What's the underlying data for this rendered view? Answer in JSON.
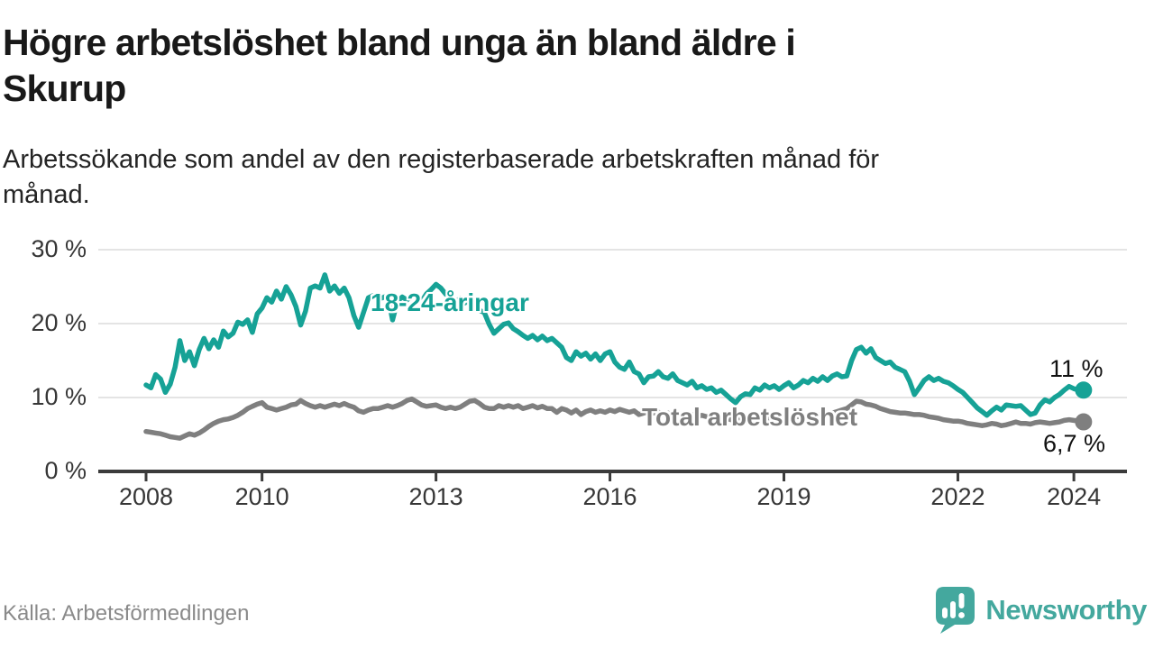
{
  "header": {
    "title_lines": [
      "Högre arbetslöshet bland unga än bland äldre i",
      "Skurup"
    ],
    "subtitle_lines": [
      "Arbetssökande som andel av den registerbaserade arbetskraften månad för",
      "månad."
    ]
  },
  "footer": {
    "source": "Källa: Arbetsförmedlingen",
    "brand_name": "Newsworthy",
    "brand_icon": "newsworthy-speech-bubble-bar-chart-icon"
  },
  "colors": {
    "young_line": "#16a296",
    "total_line": "#7f7f7f",
    "end_dot_young": "#16a296",
    "end_dot_total": "#7f7f7f",
    "gridline": "#dcdcdc",
    "axis": "#3b3b3b",
    "title_text": "#191919",
    "tick_text": "#363636",
    "source_text": "#8a8a8a",
    "brand_teal": "#44a89e"
  },
  "chart_data": {
    "type": "line",
    "frequency": "monthly",
    "x_start": "2008-01",
    "x_end": "2024-03",
    "grid": "horizontal-only",
    "ylim": [
      0,
      31
    ],
    "y_axis": {
      "ticks": [
        {
          "label": "30 %",
          "value": 30
        },
        {
          "label": "20 %",
          "value": 20
        },
        {
          "label": "10 %",
          "value": 10
        },
        {
          "label": "0 %",
          "value": 0
        }
      ]
    },
    "x_axis": {
      "ticks": [
        {
          "label": "2008",
          "year": 2008
        },
        {
          "label": "2010",
          "year": 2010
        },
        {
          "label": "2013",
          "year": 2013
        },
        {
          "label": "2016",
          "year": 2016
        },
        {
          "label": "2019",
          "year": 2019
        },
        {
          "label": "2022",
          "year": 2022
        },
        {
          "label": "2024",
          "year": 2024
        }
      ]
    },
    "series": [
      {
        "name": "Total arbetslöshet",
        "color": "#7f7f7f",
        "end_label": "6,7 %",
        "end_value": 6.7,
        "values": [
          5.4,
          5.3,
          5.2,
          5.1,
          4.9,
          4.7,
          4.6,
          4.5,
          4.8,
          5.1,
          4.9,
          5.2,
          5.6,
          6.1,
          6.5,
          6.8,
          7.0,
          7.1,
          7.3,
          7.6,
          8.0,
          8.5,
          8.8,
          9.1,
          9.3,
          8.7,
          8.5,
          8.3,
          8.5,
          8.7,
          9.0,
          9.1,
          9.6,
          9.2,
          8.9,
          8.7,
          8.9,
          8.7,
          8.9,
          9.1,
          8.9,
          9.2,
          8.9,
          8.7,
          8.2,
          8.0,
          8.3,
          8.5,
          8.5,
          8.7,
          8.9,
          8.7,
          8.9,
          9.2,
          9.6,
          9.8,
          9.4,
          9.0,
          8.8,
          8.9,
          9.0,
          8.7,
          8.5,
          8.7,
          8.5,
          8.7,
          9.1,
          9.5,
          9.6,
          9.2,
          8.7,
          8.5,
          8.5,
          8.9,
          8.7,
          8.9,
          8.7,
          8.9,
          8.5,
          8.7,
          8.9,
          8.6,
          8.8,
          8.5,
          8.5,
          8.0,
          8.5,
          8.3,
          7.9,
          8.3,
          7.7,
          8.1,
          8.3,
          8.0,
          8.2,
          8.0,
          8.3,
          8.1,
          8.4,
          8.2,
          8.0,
          8.2,
          7.7,
          7.9,
          8.1,
          7.9,
          8.0,
          7.8,
          7.9,
          7.7,
          7.9,
          7.7,
          7.5,
          7.7,
          7.4,
          7.6,
          7.4,
          7.2,
          7.3,
          7.1,
          7.2,
          7.0,
          7.1,
          6.9,
          7.0,
          7.1,
          6.9,
          7.1,
          7.2,
          7.0,
          7.2,
          7.3,
          7.4,
          7.3,
          7.5,
          7.4,
          7.6,
          7.5,
          7.7,
          7.6,
          7.8,
          7.7,
          7.9,
          8.1,
          8.3,
          8.5,
          9.0,
          9.5,
          9.4,
          9.1,
          9.0,
          8.8,
          8.5,
          8.3,
          8.1,
          8.0,
          7.9,
          7.9,
          7.8,
          7.7,
          7.7,
          7.6,
          7.4,
          7.3,
          7.2,
          7.0,
          6.9,
          6.8,
          6.8,
          6.7,
          6.5,
          6.4,
          6.3,
          6.2,
          6.3,
          6.5,
          6.4,
          6.2,
          6.3,
          6.5,
          6.7,
          6.5,
          6.5,
          6.4,
          6.6,
          6.7,
          6.6,
          6.5,
          6.6,
          6.7,
          6.9,
          7.0,
          6.9,
          6.8,
          6.7
        ]
      },
      {
        "name": "18-24-åringar",
        "color": "#16a296",
        "end_label": "11 %",
        "end_value": 11.0,
        "values": [
          11.7,
          11.3,
          13.1,
          12.5,
          10.7,
          11.8,
          14.1,
          17.7,
          15.0,
          16.2,
          14.3,
          16.5,
          18.0,
          16.6,
          17.8,
          16.8,
          19.0,
          18.2,
          18.7,
          20.2,
          19.9,
          20.5,
          18.8,
          21.3,
          22.1,
          23.5,
          22.9,
          24.4,
          23.3,
          25.0,
          23.9,
          22.3,
          19.8,
          21.7,
          24.8,
          25.1,
          24.8,
          26.6,
          24.4,
          25.1,
          24.1,
          24.8,
          23.5,
          21.1,
          19.5,
          21.5,
          23.5,
          23.8,
          23.3,
          23.5,
          23.8,
          20.5,
          23.0,
          23.6,
          23.2,
          23.8,
          23.4,
          23.0,
          24.0,
          24.6,
          25.3,
          24.8,
          24.0,
          23.4,
          23.0,
          23.4,
          22.8,
          23.2,
          22.4,
          21.8,
          21.5,
          19.9,
          18.7,
          19.3,
          19.9,
          20.1,
          19.3,
          18.9,
          18.4,
          18.0,
          18.4,
          17.8,
          18.3,
          17.7,
          18.0,
          17.4,
          16.8,
          15.4,
          15.0,
          16.2,
          15.6,
          16.0,
          15.2,
          15.9,
          15.0,
          15.9,
          16.2,
          14.8,
          14.1,
          13.8,
          14.8,
          13.5,
          13.2,
          12.0,
          12.8,
          12.9,
          13.5,
          12.8,
          12.6,
          13.2,
          12.3,
          12.0,
          11.7,
          12.2,
          11.3,
          11.6,
          11.1,
          11.3,
          10.7,
          11.0,
          10.4,
          9.8,
          9.3,
          10.1,
          10.5,
          10.4,
          11.3,
          11.0,
          11.7,
          11.3,
          11.6,
          11.1,
          11.6,
          12.0,
          11.3,
          11.7,
          12.3,
          12.0,
          12.6,
          12.2,
          12.8,
          12.3,
          12.9,
          13.2,
          12.8,
          12.9,
          15.0,
          16.5,
          16.8,
          16.0,
          16.6,
          15.4,
          15.0,
          14.6,
          14.8,
          14.1,
          13.8,
          13.5,
          12.2,
          10.4,
          11.3,
          12.3,
          12.8,
          12.3,
          12.6,
          12.2,
          12.0,
          11.6,
          11.1,
          10.7,
          10.0,
          9.3,
          8.6,
          8.1,
          7.6,
          8.2,
          8.7,
          8.3,
          9.0,
          8.9,
          8.8,
          8.9,
          8.3,
          7.7,
          7.9,
          9.0,
          9.7,
          9.4,
          10.0,
          10.4,
          11.0,
          11.5,
          11.2,
          11.0,
          11.0
        ]
      }
    ]
  }
}
